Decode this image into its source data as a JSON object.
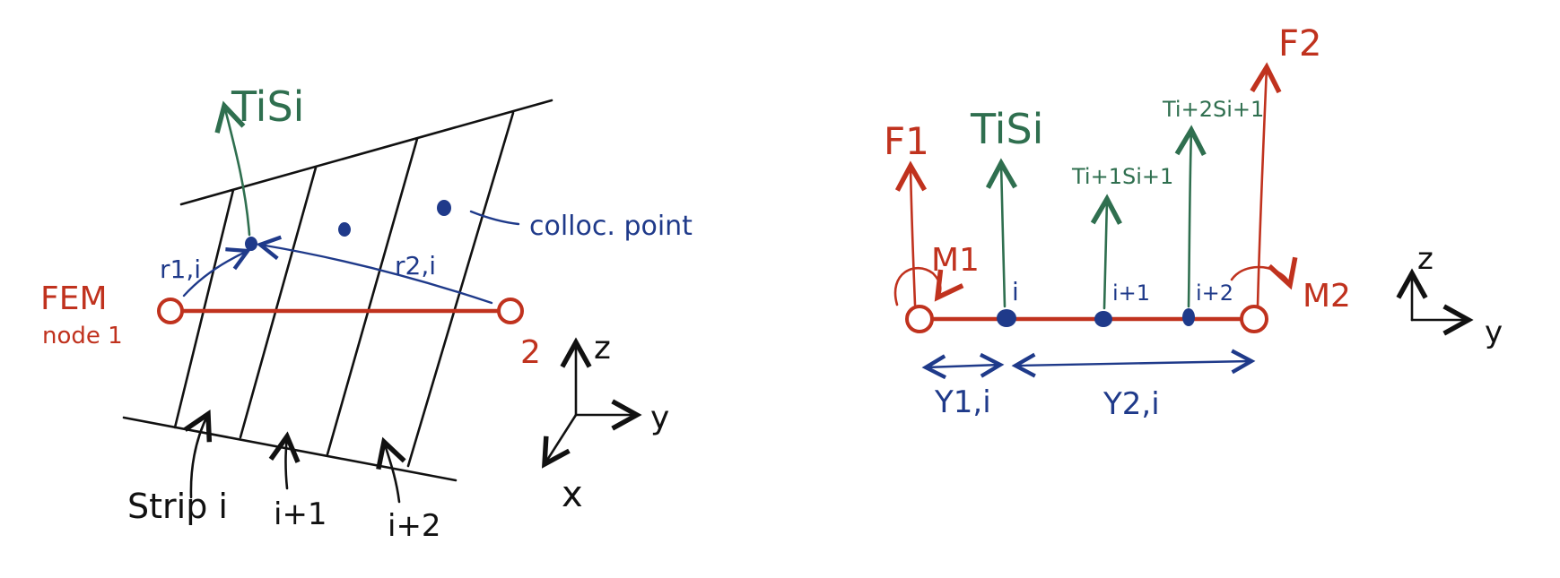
{
  "colors": {
    "ink": "#111111",
    "red": "#c0321e",
    "green": "#2f6f4f",
    "blue": "#1f3a8a"
  },
  "left": {
    "force_label": "TiSi",
    "colloc_label": "colloc. point",
    "r1_label": "r1,i",
    "r2_label": "r2,i",
    "fem_label": "FEM",
    "node1_label": "node 1",
    "node2_label": "2",
    "strip_i_label": "Strip i",
    "strip_i1_label": "i+1",
    "strip_i2_label": "i+2",
    "axis_z": "z",
    "axis_y": "y",
    "axis_x": "x"
  },
  "right": {
    "F1_label": "F1",
    "F2_label": "F2",
    "M1_label": "M1",
    "M2_label": "M2",
    "force_i_label": "TiSi",
    "force_i1_label": "Ti+1Si+1",
    "force_i2_label": "Ti+2Si+1",
    "node_i_label": "i",
    "node_i1_label": "i+1",
    "node_i2_label": "i+2",
    "y1_label": "Y1,i",
    "y2_label": "Y2,i",
    "axis_z": "z",
    "axis_y": "y"
  }
}
